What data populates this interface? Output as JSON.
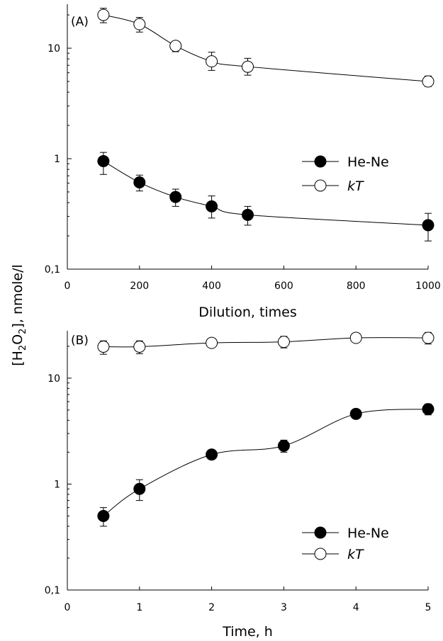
{
  "ylabel_parts": {
    "open": "[H",
    "sub1": "2",
    "mid": "O",
    "sub2": "2",
    "close": "], nmole/l"
  },
  "chart_data": [
    {
      "type": "line",
      "panel_label": "(A)",
      "xlabel": "Dilution, times",
      "xlim": [
        0,
        1000
      ],
      "ylim": [
        0.1,
        25
      ],
      "yscale": "log",
      "x_ticks": [
        0,
        200,
        400,
        600,
        800,
        1000
      ],
      "x_tick_labels": [
        "0",
        "200",
        "400",
        "600",
        "800",
        "1000"
      ],
      "y_ticks": [
        0.1,
        1,
        10
      ],
      "y_tick_labels": [
        "0,1",
        "1",
        "10"
      ],
      "legend_position": "center-right",
      "series": [
        {
          "name": "He-Ne",
          "marker": "filled-circle",
          "x": [
            100,
            200,
            300,
            400,
            500,
            1000
          ],
          "y": [
            0.95,
            0.61,
            0.45,
            0.37,
            0.31,
            0.25
          ],
          "err_low": [
            0.72,
            0.51,
            0.37,
            0.29,
            0.25,
            0.18
          ],
          "err_high": [
            1.14,
            0.71,
            0.53,
            0.46,
            0.37,
            0.32
          ]
        },
        {
          "name": "kT",
          "marker": "open-circle",
          "x": [
            100,
            200,
            300,
            400,
            500,
            1000
          ],
          "y": [
            20,
            16.5,
            10.5,
            7.6,
            6.8,
            5.0
          ],
          "err_low": [
            17,
            14,
            9.3,
            6.3,
            5.7,
            4.5
          ],
          "err_high": [
            23,
            19,
            11.5,
            9.2,
            8.1,
            5.6
          ]
        }
      ]
    },
    {
      "type": "line",
      "panel_label": "(B)",
      "xlabel": "Time, h",
      "xlim": [
        0,
        5
      ],
      "ylim": [
        0.1,
        28
      ],
      "yscale": "log",
      "x_ticks": [
        0,
        1,
        2,
        3,
        4,
        5
      ],
      "x_tick_labels": [
        "0",
        "1",
        "2",
        "3",
        "4",
        "5"
      ],
      "y_ticks": [
        0.1,
        1,
        10
      ],
      "y_tick_labels": [
        "0,1",
        "1",
        "10"
      ],
      "legend_position": "bottom-right",
      "series": [
        {
          "name": "He-Ne",
          "marker": "filled-circle",
          "x": [
            0.5,
            1,
            2,
            3,
            4,
            5
          ],
          "y": [
            0.5,
            0.9,
            1.9,
            2.3,
            4.6,
            5.1
          ],
          "err_low": [
            0.4,
            0.7,
            1.75,
            2.0,
            4.2,
            4.5
          ],
          "err_high": [
            0.6,
            1.1,
            2.05,
            2.6,
            5.0,
            5.7
          ]
        },
        {
          "name": "kT",
          "marker": "open-circle",
          "x": [
            0.5,
            1,
            2,
            3,
            4,
            5
          ],
          "y": [
            19.8,
            19.8,
            21.5,
            22.0,
            24.0,
            24.0
          ],
          "err_low": [
            16.8,
            17.0,
            19.5,
            19.3,
            22.0,
            21.0
          ],
          "err_high": [
            22.5,
            22.5,
            23.5,
            24.8,
            26.0,
            27.0
          ]
        }
      ]
    }
  ]
}
